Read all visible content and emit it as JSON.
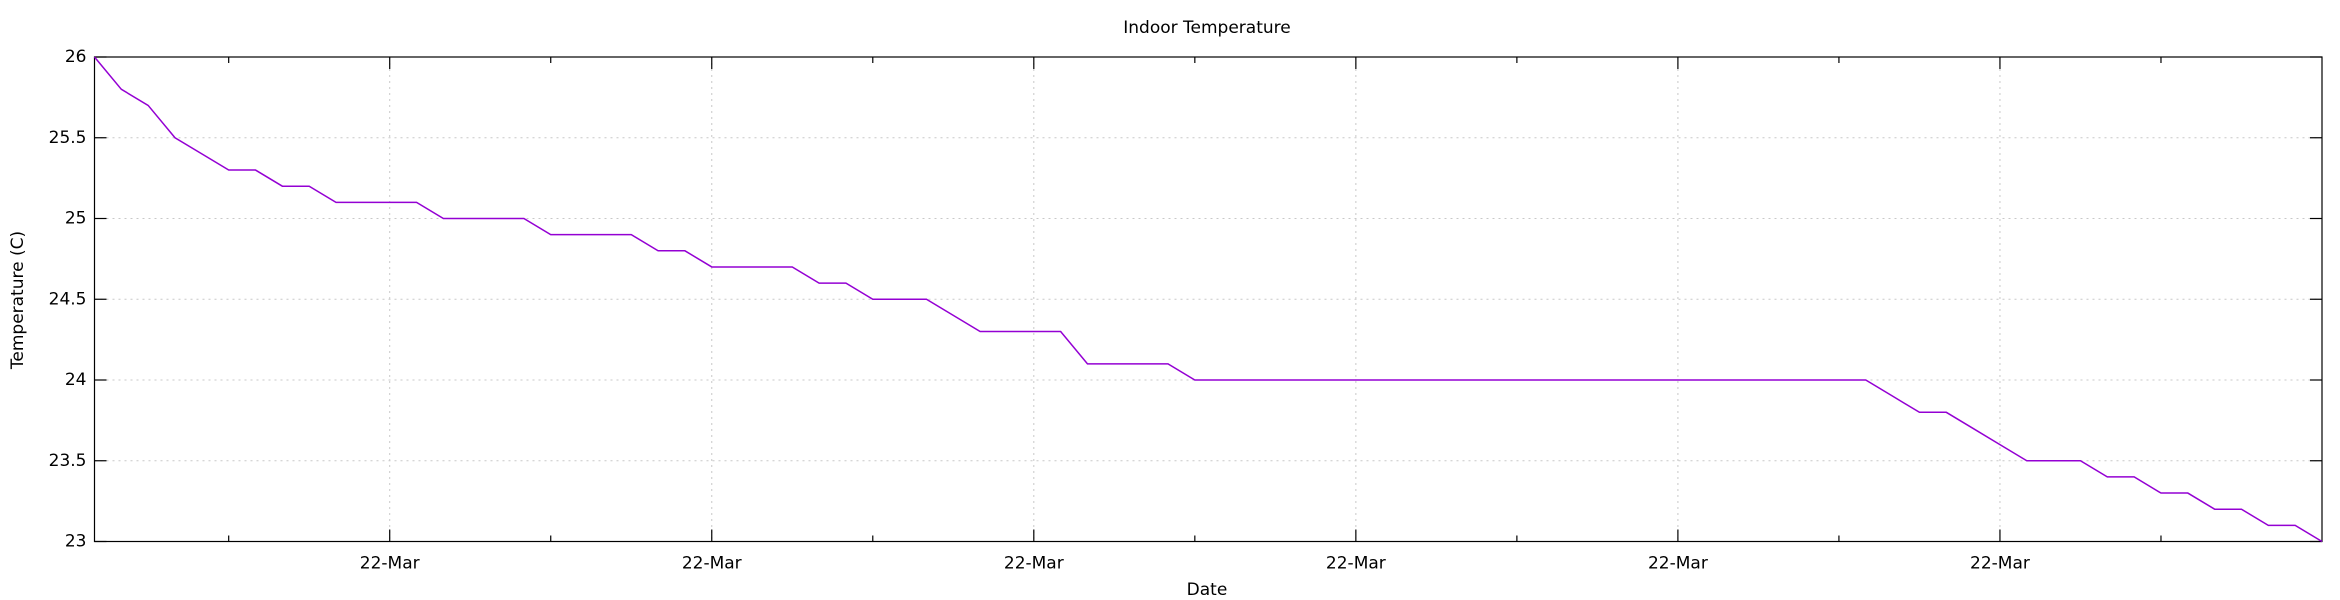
{
  "chart_data": {
    "type": "line",
    "title": "Indoor Temperature",
    "x_label": "Date",
    "y_label": "Temperature (C)",
    "x": [
      0,
      1,
      2,
      3,
      4,
      5,
      6,
      7,
      8,
      9,
      10,
      11,
      12,
      13,
      14,
      15,
      16,
      17,
      18,
      19,
      20,
      21,
      22,
      23,
      24,
      25,
      26,
      27,
      28,
      29,
      30,
      31,
      32,
      33,
      34,
      35,
      36,
      37,
      38,
      39,
      40,
      41,
      42,
      43,
      44,
      45,
      46,
      47,
      48,
      49,
      50,
      51,
      52,
      53,
      54,
      55,
      56,
      57,
      58,
      59,
      60,
      61,
      62,
      63,
      64,
      65,
      66,
      67,
      68,
      69,
      70,
      71,
      72,
      73,
      74,
      75,
      76,
      77,
      78,
      79,
      80,
      81,
      82,
      83
    ],
    "series": [
      {
        "name": "Indoor Temperature",
        "color": "#9400d3",
        "values": [
          26,
          25.8,
          25.7,
          25.5,
          25.4,
          25.3,
          25.3,
          25.2,
          25.2,
          25.1,
          25.1,
          25.1,
          25.1,
          25,
          25,
          25,
          25,
          24.9,
          24.9,
          24.9,
          24.9,
          24.8,
          24.8,
          24.7,
          24.7,
          24.7,
          24.7,
          24.6,
          24.6,
          24.5,
          24.5,
          24.5,
          24.4,
          24.3,
          24.3,
          24.3,
          24.3,
          24.1,
          24.1,
          24.1,
          24.1,
          24,
          24,
          24,
          24,
          24,
          24,
          24,
          24,
          24,
          24,
          24,
          24,
          24,
          24,
          24,
          24,
          24,
          24,
          24,
          24,
          24,
          24,
          24,
          24,
          24,
          24,
          23.9,
          23.8,
          23.8,
          23.7,
          23.6,
          23.5,
          23.5,
          23.5,
          23.4,
          23.4,
          23.3,
          23.3,
          23.2,
          23.2,
          23.1,
          23.1,
          23
        ]
      }
    ],
    "xlim": [
      0,
      83
    ],
    "xticks": [
      {
        "value": 11,
        "label": "22-Mar"
      },
      {
        "value": 23,
        "label": "22-Mar"
      },
      {
        "value": 35,
        "label": "22-Mar"
      },
      {
        "value": 47,
        "label": "22-Mar"
      },
      {
        "value": 59,
        "label": "22-Mar"
      },
      {
        "value": 71,
        "label": "22-Mar"
      }
    ],
    "xminorticks": [
      5,
      17,
      29,
      41,
      53,
      65,
      77
    ],
    "ylim": [
      23,
      26
    ],
    "yticks": [
      23,
      23.5,
      24,
      24.5,
      25,
      25.5,
      26
    ],
    "grid": true
  }
}
